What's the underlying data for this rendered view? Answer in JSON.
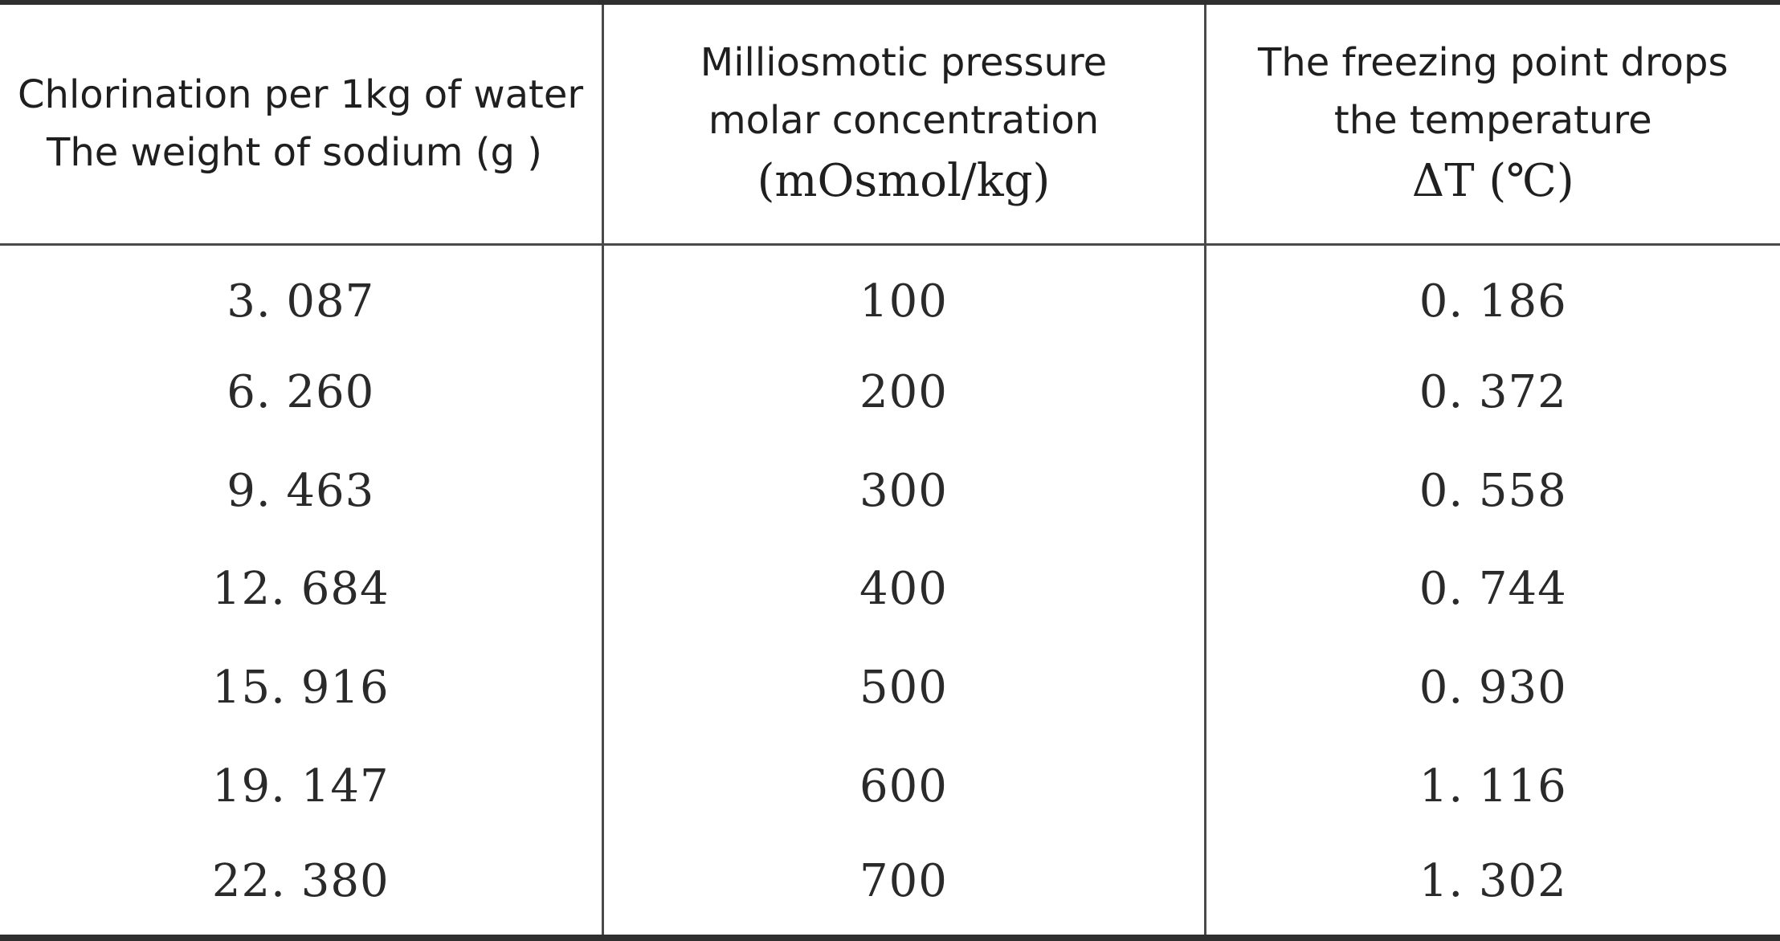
{
  "table": {
    "headers": [
      {
        "lines": [
          "Chlorination per 1kg of water",
          "The weight of sodium (g )"
        ],
        "unit": ""
      },
      {
        "lines": [
          "Milliosmotic pressure",
          "molar concentration"
        ],
        "unit": "(mOsmol/kg)"
      },
      {
        "lines": [
          "The freezing point drops",
          "the temperature"
        ],
        "unit": "ΔT (℃)"
      }
    ],
    "rows": [
      [
        "3. 087",
        "100",
        "0. 186"
      ],
      [
        "6. 260",
        "200",
        "0. 372"
      ],
      [
        "9. 463",
        "300",
        "0. 558"
      ],
      [
        "12. 684",
        "400",
        "0. 744"
      ],
      [
        "15. 916",
        "500",
        "0. 930"
      ],
      [
        "19. 147",
        "600",
        "1. 116"
      ],
      [
        "22. 380",
        "700",
        "1. 302"
      ]
    ]
  }
}
